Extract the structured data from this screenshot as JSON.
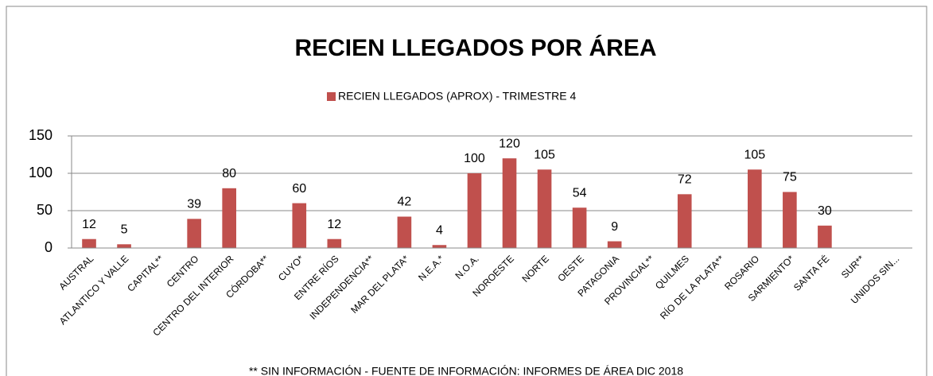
{
  "chart_data": {
    "type": "bar",
    "title": "RECIEN LLEGADOS POR ÁREA",
    "footnote": "** SIN INFORMACIÓN - FUENTE DE INFORMACIÓN: INFORMES DE ÁREA DIC 2018",
    "categories": [
      "AUSTRAL",
      "ATLANTICO Y VALLE",
      "CAPITAL**",
      "CENTRO",
      "CENTRO DEL INTERIOR",
      "CÓRDOBA**",
      "CUYO*",
      "ENTRE RÍOS",
      "INDEPENDENCIA**",
      "MAR DEL PLATA*",
      "N.E.A.*",
      "N.O.A.",
      "NOROESTE",
      "NORTE",
      "OESTE",
      "PATAGONIA",
      "PROVINCIAL**",
      "QUILMES",
      "RÍO DE LA PLATA**",
      "ROSARIO",
      "SARMIENTO*",
      "SANTA FÉ",
      "SUR**",
      "UNIDOS SIN..."
    ],
    "series": [
      {
        "name": "RECIEN LLEGADOS (APROX) - TRIMESTRE 4",
        "color": "#c0504d",
        "values": [
          12,
          5,
          null,
          39,
          80,
          null,
          60,
          12,
          null,
          42,
          4,
          100,
          120,
          105,
          54,
          9,
          null,
          72,
          null,
          105,
          75,
          30,
          null,
          null
        ]
      }
    ],
    "ylim": [
      0,
      150
    ],
    "yticks": [
      0,
      50,
      100,
      150
    ],
    "grid": true,
    "legend": "top"
  }
}
